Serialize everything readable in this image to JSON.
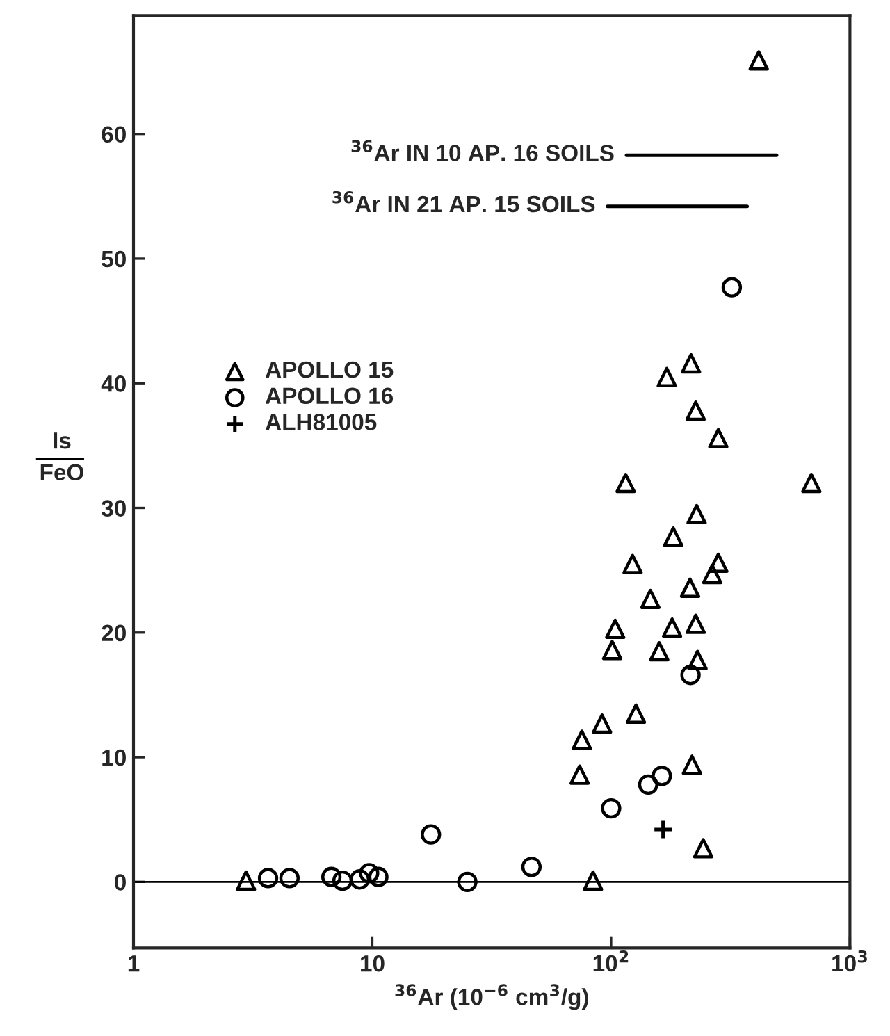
{
  "chart_data": {
    "type": "scatter",
    "xlabel": "$^{36}$Ar (10$^{−6}$ cm$^{3}$/g)",
    "ylabel": "Is\nFeO",
    "log": "x",
    "xlim": [
      1,
      1000
    ],
    "ylim": [
      -5.3,
      69.5
    ],
    "xticks": [
      1,
      10,
      {
        "value": 100,
        "label": "10$^{2}$"
      },
      {
        "value": 1000,
        "label": "10$^{3}$"
      }
    ],
    "yticks": [
      0,
      10,
      20,
      30,
      40,
      50,
      60
    ],
    "grid": false,
    "legend": "center left",
    "ref_lines": [
      {
        "axis": "y",
        "value": 0,
        "label": null,
        "color": "#000000"
      }
    ],
    "series": [
      {
        "name": "APOLLO 15",
        "marker": "triangle",
        "color": "#000000",
        "x": [
          2.96,
          84,
          73.8,
          228,
          182,
          123,
          281,
          265,
          214,
          146,
          104,
          180,
          226,
          101,
          159,
          230,
          127,
          91.6,
          75.4,
          218,
          243,
          415,
          216,
          171,
          226,
          281,
          115,
          689
        ],
        "values": [
          0.1,
          0.1,
          8.6,
          29.5,
          27.7,
          25.5,
          25.6,
          24.7,
          23.6,
          22.7,
          20.3,
          20.4,
          20.7,
          18.6,
          18.5,
          17.8,
          13.5,
          12.7,
          11.4,
          9.4,
          2.7,
          65.9,
          41.6,
          40.5,
          37.8,
          35.6,
          32,
          32
        ]
      },
      {
        "name": "APOLLO 16",
        "marker": "circle",
        "color": "#000000",
        "x": [
          3.66,
          4.5,
          6.74,
          7.5,
          8.86,
          9.7,
          10.6,
          17.6,
          25,
          46.4,
          100,
          215,
          163,
          143,
          320
        ],
        "values": [
          0.3,
          0.3,
          0.4,
          0.1,
          0.2,
          0.7,
          0.4,
          3.8,
          0,
          1.2,
          5.9,
          16.6,
          8.5,
          7.8,
          47.7
        ]
      },
      {
        "name": "ALH81005",
        "marker": "cross",
        "color": "#000000",
        "x": [
          165
        ],
        "values": [
          4.2
        ]
      },
      {
        "name": "$^{36}$Ar IN 10 AP. 16 SOILS",
        "type": "line",
        "marker": "none",
        "line_style": "solid",
        "color": "#000000",
        "x": [
          116,
          493
        ],
        "values": [
          58.3,
          58.3
        ]
      },
      {
        "name": "$^{36}$Ar IN 21 AP. 15 SOILS",
        "type": "line",
        "marker": "none",
        "line_style": "solid",
        "color": "#000000",
        "x": [
          96.6,
          371
        ],
        "values": [
          54.2,
          54.2
        ]
      }
    ]
  }
}
